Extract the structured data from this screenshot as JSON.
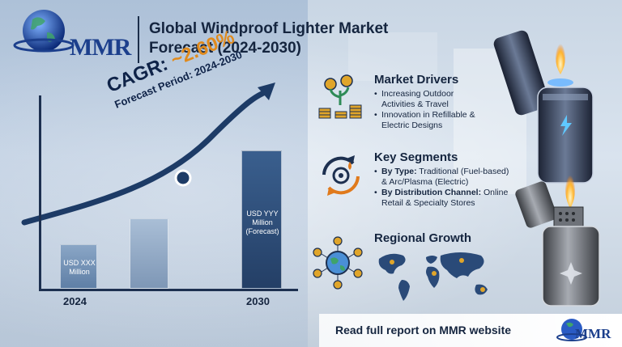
{
  "logo": {
    "text": "MMR"
  },
  "title": {
    "line1": "Global Windproof Lighter Market",
    "line2": "Forecast (2024-2030)"
  },
  "chart": {
    "cagr_label": "CAGR: ",
    "cagr_value": "~2.60%",
    "forecast_period": "Forecast Period: 2024-2030",
    "bars": [
      {
        "year": "2024",
        "label_line1": "USD XXX",
        "label_line2": "Million",
        "label_line3": ""
      },
      {
        "year": "",
        "label_line1": "",
        "label_line2": "",
        "label_line3": ""
      },
      {
        "year": "2030",
        "label_line1": "USD YYY",
        "label_line2": "Million",
        "label_line3": "(Forecast)"
      }
    ],
    "year_2024": "2024",
    "year_2030": "2030"
  },
  "drivers": {
    "title": "Market Drivers",
    "items": [
      "Increasing Outdoor Activities & Travel",
      "Innovation in Refillable & Electric Designs"
    ],
    "item1_line1": "Increasing Outdoor",
    "item1_line2": "Activities & Travel",
    "item2_line1": "Innovation in Refillable &",
    "item2_line2": "Electric Designs"
  },
  "segments": {
    "title": "Key Segments",
    "item1_bold": "By Type:",
    "item1_rest": " Traditional (Fuel-based)",
    "item1_line2": "& Arc/Plasma (Electric)",
    "item2_bold": "By Distribution Channel:",
    "item2_rest": " Online",
    "item2_line2": "Retail & Specialty Stores"
  },
  "regional": {
    "title": "Regional Growth"
  },
  "footer": {
    "text": "Read full report on MMR website",
    "logo": "MMR"
  },
  "colors": {
    "accent": "#e08a1c",
    "navy": "#15253f",
    "brand": "#1c3f8c"
  },
  "icons": [
    "globe-icon",
    "money-plant-icon",
    "gear-cycle-icon",
    "network-globe-icon",
    "world-map-icon",
    "lighter-image"
  ]
}
